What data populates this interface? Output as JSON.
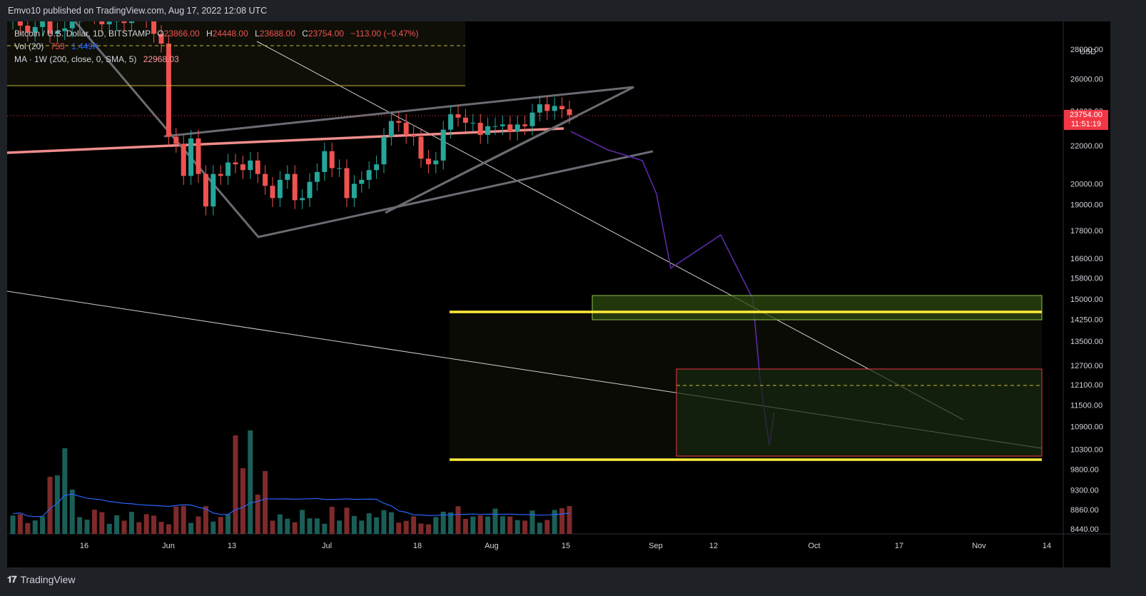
{
  "header": {
    "published": "Emvo10 published on TradingView.com, Aug 17, 2022 12:08 UTC"
  },
  "legend": {
    "symbol": "Bitcoin / U.S. Dollar, 1D, BITSTAMP",
    "open_label": "O",
    "open": "23866.00",
    "high_label": "H",
    "high": "24448.00",
    "low_label": "L",
    "low": "23688.00",
    "close_label": "C",
    "close": "23754.00",
    "change": "−113.00 (−0.47%)",
    "vol_label": "Vol (20)",
    "vol_value": "753",
    "vol_ma": "1.449K",
    "ma_label": "MA · 1W (200, close, 0, SMA, 5)",
    "ma_value": "22968.03"
  },
  "price_axis": {
    "currency": "USD",
    "last_price": "23754.00",
    "countdown": "11:51:19",
    "ticks": [
      "28000.00",
      "26000.00",
      "24000.00",
      "22000.00",
      "20000.00",
      "19000.00",
      "17800.00",
      "16600.00",
      "15800.00",
      "15000.00",
      "14250.00",
      "13500.00",
      "12700.00",
      "12100.00",
      "11500.00",
      "10900.00",
      "10300.00",
      "9800.00",
      "9300.00",
      "8860.00",
      "8440.00"
    ]
  },
  "time_axis": {
    "ticks": [
      "16",
      "Jun",
      "13",
      "Jul",
      "18",
      "Aug",
      "15",
      "Sep",
      "12",
      "Oct",
      "17",
      "Nov",
      "14"
    ]
  },
  "footer": {
    "brand": "TradingView"
  },
  "colors": {
    "up": "#26a69a",
    "down": "#ef5350",
    "up_vol": "#1b5e58",
    "down_vol": "#7f2a2a",
    "ma_line": "#f08c8c",
    "vol_ma": "#2962ff",
    "yellow": "#ffeb3b",
    "green_zone": "#a5d63f",
    "red_zone": "#f23645",
    "projection": "#5b2aa8"
  },
  "chart_data": {
    "type": "candlestick",
    "symbol": "Bitcoin / U.S. Dollar",
    "interval": "1D",
    "exchange": "BITSTAMP",
    "y_scale": "log",
    "ylim": [
      8440,
      28500
    ],
    "last_candle": {
      "open": 23866.0,
      "high": 24448.0,
      "low": 23688.0,
      "close": 23754.0,
      "change": -113.0,
      "change_pct": -0.47
    },
    "moving_average": {
      "type": "SMA",
      "timeframe": "1W",
      "length": 200,
      "value": 22968.03
    },
    "volume": {
      "length": 20,
      "last": 753,
      "ma": 1449
    },
    "candles_close": [
      30400,
      29700,
      29200,
      29600,
      30300,
      29100,
      29300,
      29500,
      30000,
      31300,
      31700,
      30500,
      29800,
      30000,
      30400,
      29900,
      31400,
      31100,
      30200,
      29100,
      28400,
      22500,
      22100,
      20400,
      22400,
      20500,
      18900,
      20500,
      20400,
      21100,
      21000,
      20700,
      21200,
      20500,
      19900,
      19300,
      20200,
      20500,
      19200,
      19300,
      20100,
      20600,
      21700,
      20800,
      20800,
      19300,
      20000,
      20200,
      20700,
      21000,
      22500,
      23400,
      23300,
      22600,
      22500,
      21300,
      21000,
      21200,
      22900,
      23800,
      23600,
      23300,
      23300,
      22600,
      23100,
      23100,
      23200,
      22800,
      23200,
      23100,
      23900,
      24400,
      24000,
      24300,
      24100,
      23754
    ],
    "projection_path": [
      {
        "date": "Aug 18",
        "price": 22800
      },
      {
        "date": "Aug 23",
        "price": 21800
      },
      {
        "date": "Aug 30",
        "price": 21200
      },
      {
        "date": "Sep 01",
        "price": 19500
      },
      {
        "date": "Sep 04",
        "price": 16200
      },
      {
        "date": "Sep 14",
        "price": 17600
      },
      {
        "date": "Sep 18",
        "price": 15000
      },
      {
        "date": "Sep 20",
        "price": 12300
      },
      {
        "date": "Sep 22",
        "price": 10400
      },
      {
        "date": "Sep 23",
        "price": 11300
      }
    ],
    "levels": {
      "upper_yellow": 14600,
      "lower_yellow": 10100,
      "dashed_mid": 12100,
      "dashed_top": 28600
    },
    "zones": [
      {
        "kind": "green",
        "from": "Aug 24",
        "to": "Nov 14",
        "high": 15200,
        "low": 14400
      },
      {
        "kind": "red",
        "from": "Sep 08",
        "to": "Nov 14",
        "high": 12600,
        "low": 10200
      }
    ]
  }
}
